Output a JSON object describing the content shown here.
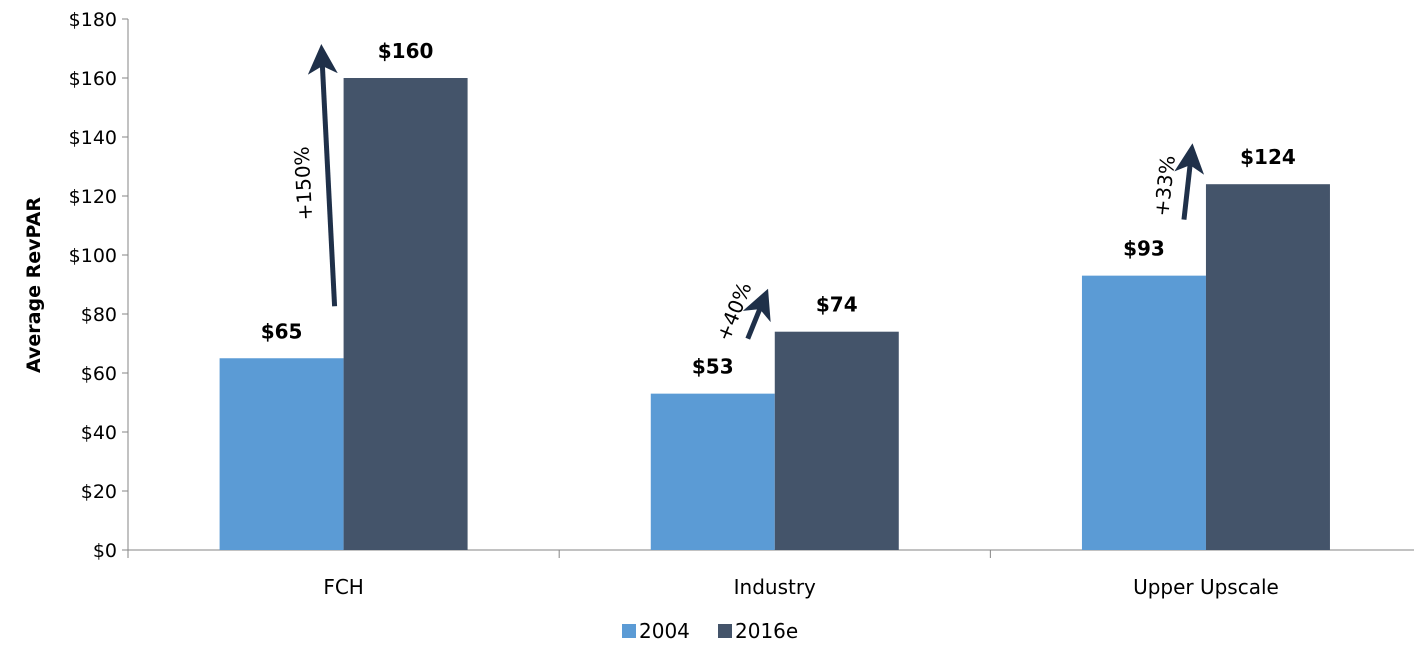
{
  "chart_data": {
    "type": "bar",
    "title": "",
    "xlabel": "",
    "ylabel": "Average RevPAR",
    "categories": [
      "FCH",
      "Industry",
      "Upper Upscale"
    ],
    "series": [
      {
        "name": "2004",
        "color": "#5B9BD5",
        "values": [
          65,
          53,
          93
        ],
        "labels": [
          "$65",
          "$53",
          "$93"
        ]
      },
      {
        "name": "2016e",
        "color": "#44546A",
        "values": [
          160,
          74,
          124
        ],
        "labels": [
          "$160",
          "$74",
          "$124"
        ]
      }
    ],
    "ylim": [
      0,
      180
    ],
    "yticks": [
      0,
      20,
      40,
      60,
      80,
      100,
      120,
      140,
      160,
      180
    ],
    "ytick_labels": [
      "$0",
      "$20",
      "$40",
      "$60",
      "$80",
      "$100",
      "$120",
      "$140",
      "$160",
      "$180"
    ],
    "grid": false,
    "legend_position": "bottom",
    "annotations": [
      {
        "category": "FCH",
        "text": "+150%"
      },
      {
        "category": "Industry",
        "text": "+40%"
      },
      {
        "category": "Upper Upscale",
        "text": "+33%"
      }
    ],
    "arrow_color": "#1F3049"
  }
}
